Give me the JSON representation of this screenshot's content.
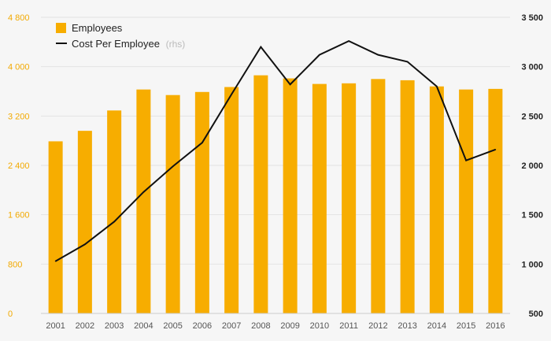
{
  "chart_data": {
    "type": "bar",
    "categories": [
      "2001",
      "2002",
      "2003",
      "2004",
      "2005",
      "2006",
      "2007",
      "2008",
      "2009",
      "2010",
      "2011",
      "2012",
      "2013",
      "2014",
      "2015",
      "2016"
    ],
    "series": [
      {
        "name": "Employees",
        "type": "bar",
        "axis": "left",
        "color": "#f7ad00",
        "values": [
          2790,
          2960,
          3290,
          3630,
          3540,
          3590,
          3670,
          3860,
          3810,
          3720,
          3730,
          3800,
          3780,
          3680,
          3630,
          3640
        ]
      },
      {
        "name": "Cost Per Employee",
        "name_suffix": "(rhs)",
        "type": "line",
        "axis": "right",
        "color": "#111111",
        "values": [
          1030,
          1200,
          1430,
          1730,
          1990,
          2230,
          2720,
          3200,
          2820,
          3120,
          3260,
          3120,
          3050,
          2800,
          2050,
          2160
        ]
      }
    ],
    "y_left": {
      "min": 0,
      "max": 4800,
      "ticks": [
        "0",
        "800",
        "1 600",
        "2 400",
        "3 200",
        "4 000",
        "4 800"
      ],
      "tick_values": [
        0,
        800,
        1600,
        2400,
        3200,
        4000,
        4800
      ],
      "color": "#f2a900"
    },
    "y_right": {
      "min": 500,
      "max": 3500,
      "ticks": [
        "500",
        "1 000",
        "1 500",
        "2 000",
        "2 500",
        "3 000",
        "3 500"
      ],
      "tick_values": [
        500,
        1000,
        1500,
        2000,
        2500,
        3000,
        3500
      ],
      "color": "#222222"
    },
    "grid": true,
    "legend": "top-left",
    "title": "",
    "xlabel": "",
    "ylabel": ""
  }
}
